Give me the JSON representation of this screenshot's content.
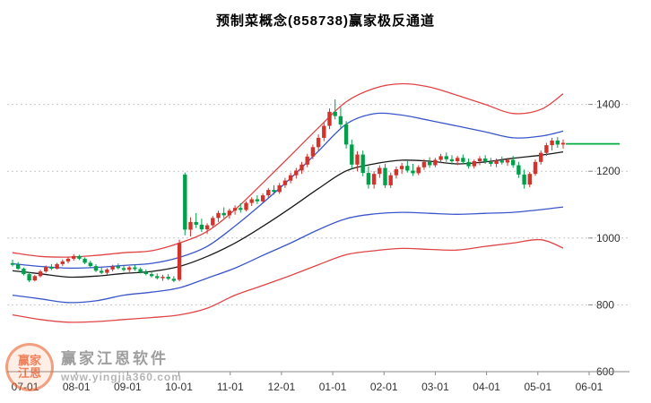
{
  "title": "预制菜概念(858738)赢家极反通道",
  "watermark": {
    "brand": "赢家江恩软件",
    "url": "www.yingjia360.com",
    "logo_line1": "赢家",
    "logo_line2": "江恩"
  },
  "colors": {
    "up": "#d0342c",
    "down": "#00a04a",
    "grid": "#c6c6c6",
    "axis": "#8a8a8a",
    "axis_text": "#333333",
    "flat_green": "#00aa3c"
  },
  "chart_data": {
    "type": "candlestick",
    "title": "预制菜概念(858738)赢家极反通道",
    "ylabel": "",
    "xlabel": "",
    "ylim": [
      600,
      1600
    ],
    "y_ticks": [
      1400,
      1200,
      1000,
      800,
      600
    ],
    "x_tick_labels": [
      "07-01",
      "08-01",
      "09-01",
      "10-01",
      "11-01",
      "12-01",
      "01-01",
      "02-01",
      "03-01",
      "04-01",
      "05-01",
      "06-01"
    ],
    "legend": "none",
    "grid": "horizontal-dotted",
    "candle_columns": [
      "date",
      "open",
      "high",
      "low",
      "close"
    ],
    "candles": [
      [
        "07-01",
        925,
        935,
        915,
        920
      ],
      [
        "07-04",
        920,
        928,
        905,
        908
      ],
      [
        "07-07",
        908,
        912,
        888,
        892
      ],
      [
        "07-10",
        892,
        898,
        868,
        873
      ],
      [
        "07-13",
        873,
        890,
        870,
        886
      ],
      [
        "07-16",
        886,
        905,
        882,
        900
      ],
      [
        "07-19",
        900,
        918,
        896,
        914
      ],
      [
        "07-22",
        914,
        922,
        904,
        908
      ],
      [
        "07-25",
        908,
        926,
        906,
        922
      ],
      [
        "07-28",
        922,
        936,
        916,
        930
      ],
      [
        "08-01",
        930,
        944,
        924,
        938
      ],
      [
        "08-04",
        938,
        952,
        932,
        946
      ],
      [
        "08-07",
        946,
        950,
        934,
        938
      ],
      [
        "08-10",
        938,
        942,
        922,
        926
      ],
      [
        "08-13",
        926,
        932,
        912,
        916
      ],
      [
        "08-16",
        916,
        922,
        898,
        902
      ],
      [
        "08-19",
        902,
        912,
        892,
        896
      ],
      [
        "08-22",
        896,
        910,
        890,
        906
      ],
      [
        "08-25",
        906,
        920,
        900,
        915
      ],
      [
        "08-28",
        915,
        924,
        906,
        910
      ],
      [
        "09-01",
        910,
        918,
        900,
        905
      ],
      [
        "09-04",
        905,
        916,
        898,
        912
      ],
      [
        "09-07",
        912,
        920,
        902,
        907
      ],
      [
        "09-10",
        907,
        912,
        894,
        898
      ],
      [
        "09-13",
        898,
        906,
        888,
        892
      ],
      [
        "09-16",
        892,
        900,
        882,
        886
      ],
      [
        "09-19",
        886,
        894,
        876,
        880
      ],
      [
        "09-22",
        880,
        890,
        872,
        884
      ],
      [
        "09-25",
        884,
        892,
        874,
        878
      ],
      [
        "09-28",
        878,
        886,
        868,
        872
      ],
      [
        "10-02",
        875,
        995,
        870,
        985
      ],
      [
        "10-05",
        1190,
        1196,
        1008,
        1025
      ],
      [
        "10-08",
        1025,
        1062,
        1005,
        1048
      ],
      [
        "10-11",
        1048,
        1075,
        1030,
        1040
      ],
      [
        "10-14",
        1040,
        1058,
        1018,
        1026
      ],
      [
        "10-17",
        1026,
        1044,
        1012,
        1038
      ],
      [
        "10-20",
        1038,
        1066,
        1032,
        1060
      ],
      [
        "10-23",
        1060,
        1082,
        1048,
        1075
      ],
      [
        "10-26",
        1075,
        1092,
        1060,
        1068
      ],
      [
        "10-29",
        1068,
        1088,
        1058,
        1082
      ],
      [
        "11-01",
        1082,
        1098,
        1070,
        1090
      ],
      [
        "11-04",
        1090,
        1104,
        1076,
        1084
      ],
      [
        "11-07",
        1084,
        1110,
        1080,
        1105
      ],
      [
        "11-10",
        1105,
        1122,
        1096,
        1116
      ],
      [
        "11-13",
        1116,
        1128,
        1102,
        1110
      ],
      [
        "11-16",
        1110,
        1134,
        1106,
        1128
      ],
      [
        "11-19",
        1128,
        1150,
        1120,
        1144
      ],
      [
        "11-22",
        1144,
        1158,
        1130,
        1138
      ],
      [
        "11-25",
        1138,
        1165,
        1132,
        1158
      ],
      [
        "11-28",
        1158,
        1180,
        1150,
        1172
      ],
      [
        "12-01",
        1172,
        1196,
        1164,
        1188
      ],
      [
        "12-04",
        1188,
        1210,
        1178,
        1202
      ],
      [
        "12-07",
        1202,
        1228,
        1192,
        1220
      ],
      [
        "12-10",
        1220,
        1252,
        1212,
        1244
      ],
      [
        "12-13",
        1244,
        1280,
        1236,
        1272
      ],
      [
        "12-16",
        1272,
        1310,
        1262,
        1300
      ],
      [
        "12-19",
        1300,
        1345,
        1290,
        1336
      ],
      [
        "12-22",
        1336,
        1388,
        1326,
        1378
      ],
      [
        "12-25",
        1378,
        1415,
        1355,
        1365
      ],
      [
        "12-28",
        1365,
        1392,
        1330,
        1340
      ],
      [
        "01-02",
        1340,
        1350,
        1268,
        1280
      ],
      [
        "01-05",
        1280,
        1295,
        1208,
        1220
      ],
      [
        "01-08",
        1220,
        1260,
        1200,
        1250
      ],
      [
        "01-11",
        1250,
        1262,
        1185,
        1195
      ],
      [
        "01-14",
        1195,
        1215,
        1148,
        1160
      ],
      [
        "01-17",
        1160,
        1200,
        1148,
        1192
      ],
      [
        "01-20",
        1192,
        1218,
        1180,
        1210
      ],
      [
        "01-23",
        1210,
        1222,
        1150,
        1158
      ],
      [
        "01-26",
        1158,
        1196,
        1150,
        1188
      ],
      [
        "01-29",
        1188,
        1214,
        1178,
        1206
      ],
      [
        "02-01",
        1206,
        1225,
        1192,
        1216
      ],
      [
        "02-04",
        1216,
        1230,
        1196,
        1202
      ],
      [
        "02-07",
        1202,
        1222,
        1186,
        1194
      ],
      [
        "02-10",
        1194,
        1218,
        1188,
        1212
      ],
      [
        "02-13",
        1212,
        1236,
        1204,
        1228
      ],
      [
        "02-16",
        1228,
        1242,
        1210,
        1218
      ],
      [
        "02-19",
        1218,
        1240,
        1212,
        1234
      ],
      [
        "02-22",
        1234,
        1252,
        1224,
        1245
      ],
      [
        "02-25",
        1245,
        1256,
        1228,
        1236
      ],
      [
        "02-28",
        1236,
        1248,
        1220,
        1230
      ],
      [
        "03-03",
        1230,
        1246,
        1218,
        1240
      ],
      [
        "03-06",
        1240,
        1250,
        1222,
        1228
      ],
      [
        "03-09",
        1228,
        1238,
        1208,
        1215
      ],
      [
        "03-12",
        1215,
        1235,
        1208,
        1230
      ],
      [
        "03-15",
        1230,
        1245,
        1218,
        1238
      ],
      [
        "03-18",
        1238,
        1248,
        1222,
        1228
      ],
      [
        "03-21",
        1228,
        1240,
        1214,
        1222
      ],
      [
        "03-24",
        1222,
        1238,
        1212,
        1232
      ],
      [
        "03-27",
        1232,
        1244,
        1220,
        1226
      ],
      [
        "03-30",
        1226,
        1240,
        1216,
        1234
      ],
      [
        "04-02",
        1234,
        1246,
        1210,
        1218
      ],
      [
        "04-05",
        1218,
        1228,
        1180,
        1190
      ],
      [
        "04-08",
        1190,
        1205,
        1148,
        1160
      ],
      [
        "04-11",
        1160,
        1198,
        1152,
        1192
      ],
      [
        "04-14",
        1192,
        1235,
        1186,
        1228
      ],
      [
        "04-17",
        1228,
        1262,
        1220,
        1255
      ],
      [
        "04-20",
        1255,
        1285,
        1246,
        1278
      ],
      [
        "04-23",
        1278,
        1300,
        1262,
        1292
      ],
      [
        "04-26",
        1292,
        1302,
        1270,
        1280
      ],
      [
        "04-29",
        1280,
        1295,
        1268,
        1285
      ]
    ],
    "channel_lines": [
      {
        "name": "upper-outer-red",
        "color": "#e04545",
        "points": [
          [
            0,
            956
          ],
          [
            5,
            945
          ],
          [
            10,
            943
          ],
          [
            15,
            948
          ],
          [
            20,
            956
          ],
          [
            25,
            962
          ],
          [
            30,
            985
          ],
          [
            35,
            1020
          ],
          [
            40,
            1085
          ],
          [
            45,
            1165
          ],
          [
            50,
            1247
          ],
          [
            55,
            1330
          ],
          [
            60,
            1408
          ],
          [
            65,
            1448
          ],
          [
            70,
            1462
          ],
          [
            75,
            1452
          ],
          [
            80,
            1427
          ],
          [
            85,
            1400
          ],
          [
            90,
            1373
          ],
          [
            95,
            1385
          ],
          [
            99,
            1432
          ]
        ]
      },
      {
        "name": "upper-inner-blue",
        "color": "#3a56c8",
        "points": [
          [
            0,
            923
          ],
          [
            5,
            915
          ],
          [
            10,
            910
          ],
          [
            15,
            912
          ],
          [
            20,
            918
          ],
          [
            25,
            924
          ],
          [
            30,
            942
          ],
          [
            35,
            975
          ],
          [
            40,
            1036
          ],
          [
            45,
            1105
          ],
          [
            50,
            1179
          ],
          [
            55,
            1260
          ],
          [
            60,
            1341
          ],
          [
            65,
            1372
          ],
          [
            70,
            1368
          ],
          [
            75,
            1352
          ],
          [
            80,
            1335
          ],
          [
            85,
            1318
          ],
          [
            90,
            1300
          ],
          [
            95,
            1305
          ],
          [
            99,
            1320
          ]
        ]
      },
      {
        "name": "middle-black",
        "color": "#1a1a1a",
        "points": [
          [
            0,
            902
          ],
          [
            5,
            893
          ],
          [
            10,
            883
          ],
          [
            15,
            886
          ],
          [
            20,
            894
          ],
          [
            25,
            900
          ],
          [
            30,
            915
          ],
          [
            35,
            945
          ],
          [
            40,
            985
          ],
          [
            45,
            1035
          ],
          [
            50,
            1090
          ],
          [
            55,
            1148
          ],
          [
            60,
            1201
          ],
          [
            65,
            1222
          ],
          [
            70,
            1233
          ],
          [
            75,
            1230
          ],
          [
            80,
            1222
          ],
          [
            85,
            1228
          ],
          [
            90,
            1239
          ],
          [
            95,
            1248
          ],
          [
            99,
            1258
          ]
        ]
      },
      {
        "name": "lower-inner-blue",
        "color": "#3a56c8",
        "points": [
          [
            0,
            829
          ],
          [
            5,
            818
          ],
          [
            10,
            807
          ],
          [
            15,
            812
          ],
          [
            20,
            829
          ],
          [
            25,
            838
          ],
          [
            30,
            851
          ],
          [
            35,
            880
          ],
          [
            40,
            910
          ],
          [
            45,
            948
          ],
          [
            50,
            985
          ],
          [
            55,
            1025
          ],
          [
            60,
            1058
          ],
          [
            65,
            1072
          ],
          [
            70,
            1077
          ],
          [
            75,
            1074
          ],
          [
            80,
            1071
          ],
          [
            85,
            1074
          ],
          [
            90,
            1077
          ],
          [
            95,
            1085
          ],
          [
            99,
            1093
          ]
        ]
      },
      {
        "name": "lower-outer-red",
        "color": "#e04545",
        "points": [
          [
            0,
            770
          ],
          [
            5,
            756
          ],
          [
            10,
            748
          ],
          [
            15,
            750
          ],
          [
            20,
            756
          ],
          [
            25,
            762
          ],
          [
            30,
            770
          ],
          [
            35,
            790
          ],
          [
            40,
            829
          ],
          [
            45,
            858
          ],
          [
            50,
            888
          ],
          [
            55,
            920
          ],
          [
            60,
            950
          ],
          [
            65,
            962
          ],
          [
            70,
            969
          ],
          [
            75,
            966
          ],
          [
            80,
            964
          ],
          [
            85,
            975
          ],
          [
            90,
            985
          ],
          [
            95,
            995
          ],
          [
            99,
            970
          ]
        ]
      }
    ],
    "flat_line": {
      "name": "forward-extension-green",
      "color": "#00aa3c",
      "value": 1282,
      "from_index": 99
    }
  }
}
